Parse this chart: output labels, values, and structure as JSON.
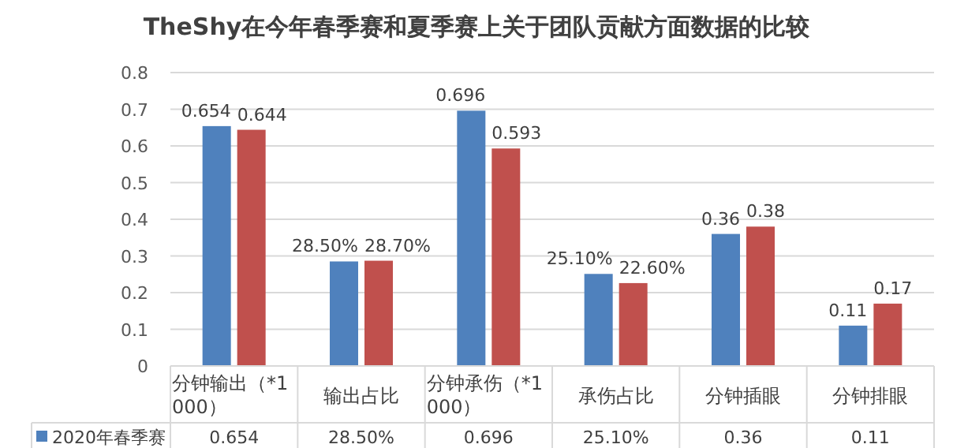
{
  "chart_data": {
    "type": "bar",
    "title": "TheShy在今年春季赛和夏季赛上关于团队贡献方面数据的比较",
    "categories": [
      "分钟输出（*1000）",
      "输出占比",
      "分钟承伤（*1000）",
      "承伤占比",
      "分钟插眼",
      "分钟排眼"
    ],
    "series": [
      {
        "name": "2020年春季赛",
        "color": "#4f81bd",
        "values": [
          0.654,
          0.285,
          0.696,
          0.251,
          0.36,
          0.11
        ],
        "value_labels": [
          "0.654",
          "28.50%",
          "0.696",
          "25.10%",
          "0.36",
          "0.11"
        ]
      },
      {
        "color": "#c0504d",
        "values": [
          0.644,
          0.287,
          0.593,
          0.226,
          0.38,
          0.17
        ],
        "value_labels": [
          "0.644",
          "28.70%",
          "0.593",
          "22.60%",
          "0.38",
          "0.17"
        ]
      }
    ],
    "ylim": [
      0,
      0.8
    ],
    "yticks": [
      0,
      0.1,
      0.2,
      0.3,
      0.4,
      0.5,
      0.6,
      0.7,
      0.8
    ],
    "grid": "y",
    "legend": "bottom"
  }
}
